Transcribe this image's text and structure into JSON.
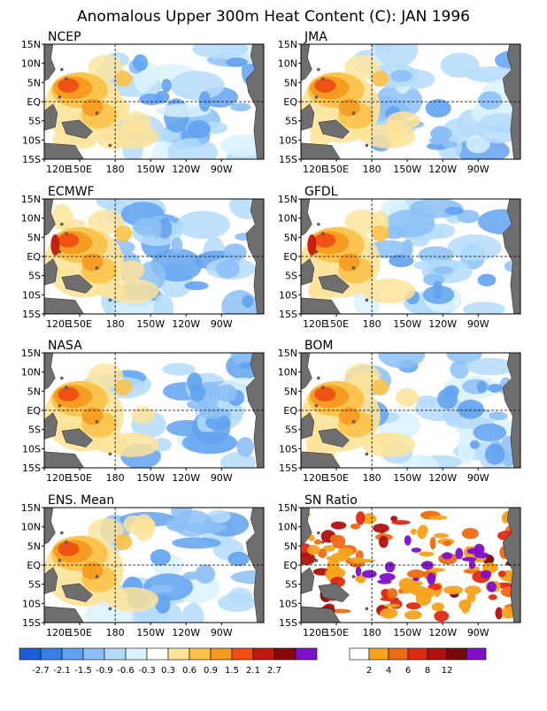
{
  "title": "Anomalous Upper 300m Heat Content (C): JAN 1996",
  "x_ticks": [
    "120E",
    "150E",
    "180",
    "150W",
    "120W",
    "90W"
  ],
  "y_ticks": [
    "15N",
    "10N",
    "5N",
    "EQ",
    "5S",
    "10S",
    "15S"
  ],
  "panels": [
    {
      "name": "NCEP",
      "label": "NCEP",
      "scale": "anomaly"
    },
    {
      "name": "JMA",
      "label": "JMA",
      "scale": "anomaly"
    },
    {
      "name": "ECMWF",
      "label": "ECMWF",
      "scale": "anomaly"
    },
    {
      "name": "GFDL",
      "label": "GFDL",
      "scale": "anomaly"
    },
    {
      "name": "NASA",
      "label": "NASA",
      "scale": "anomaly"
    },
    {
      "name": "BOM",
      "label": "BOM",
      "scale": "anomaly"
    },
    {
      "name": "ENS-Mean",
      "label": "ENS. Mean",
      "scale": "anomaly"
    },
    {
      "name": "SN-Ratio",
      "label": "SN Ratio",
      "scale": "snr"
    }
  ],
  "anomaly_colorbar": {
    "colors": [
      "#1f5fd6",
      "#3b7fe6",
      "#62a2ef",
      "#8cc0f5",
      "#b4dcfa",
      "#d9f2fd",
      "#ffffff",
      "#fde39a",
      "#fbc24a",
      "#f59a1f",
      "#ee4f13",
      "#bf1a10",
      "#850b0b",
      "#7e10c8"
    ],
    "labels": [
      "-2.7",
      "-2.1",
      "-1.5",
      "-0.9",
      "-0.6",
      "-0.3",
      "0.3",
      "0.6",
      "0.9",
      "1.5",
      "2.1",
      "2.7"
    ]
  },
  "snr_colorbar": {
    "colors": [
      "#ffffff",
      "#f5a21c",
      "#ef6a14",
      "#de2a12",
      "#b0110e",
      "#7a0a0a",
      "#7e10c8"
    ],
    "labels": [
      "2",
      "4",
      "6",
      "8",
      "12"
    ]
  },
  "chart_data": {
    "type": "heatmap",
    "title": "Anomalous Upper 300m Heat Content (C): JAN 1996",
    "variable": "Upper 300m heat content anomaly",
    "units": "C",
    "date": "JAN 1996",
    "region": {
      "lon_range": [
        "120E",
        "80W"
      ],
      "lat_range": [
        "15S",
        "15N"
      ]
    },
    "x_ticks": [
      "120E",
      "150E",
      "180",
      "150W",
      "120W",
      "90W"
    ],
    "y_ticks": [
      "15N",
      "10N",
      "5N",
      "EQ",
      "5S",
      "10S",
      "15S"
    ],
    "reference_lines": [
      "EQ",
      "180"
    ],
    "panels": [
      "NCEP",
      "JMA",
      "ECMWF",
      "GFDL",
      "NASA",
      "BOM",
      "ENS. Mean",
      "SN Ratio"
    ],
    "anomaly_levels": [
      -2.7,
      -2.1,
      -1.5,
      -0.9,
      -0.6,
      -0.3,
      0.3,
      0.6,
      0.9,
      1.5,
      2.1,
      2.7
    ],
    "snr_levels": [
      2,
      4,
      6,
      8,
      12
    ],
    "pattern_summary": {
      "warm_anomaly_center": "western Pacific near 130E-160E, 0-8N, peaking about 1.5-2.1 C",
      "cold_anomaly_band": "central-eastern Pacific 170W-100W, about -0.6 to -1.5 C",
      "land_color": "gray"
    }
  }
}
